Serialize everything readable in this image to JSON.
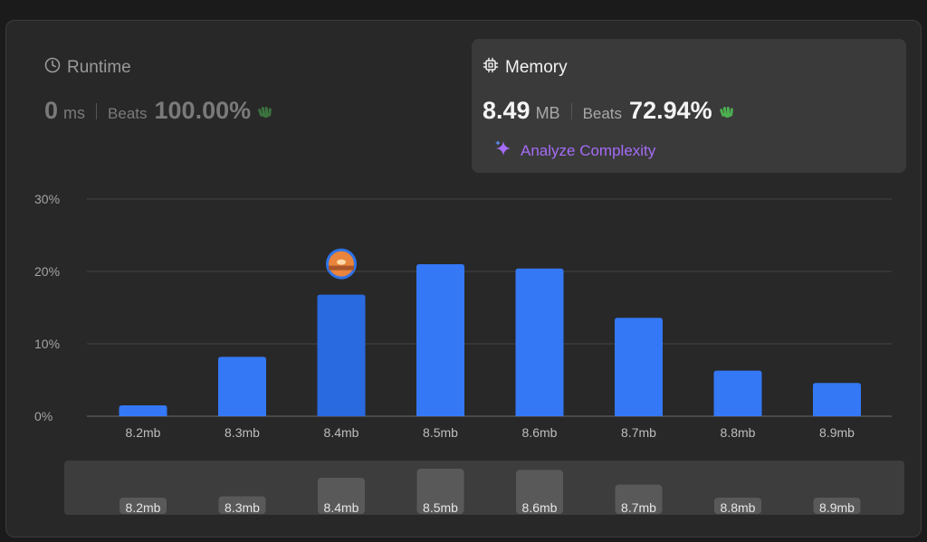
{
  "runtime": {
    "title": "Runtime",
    "value": "0",
    "unit": "ms",
    "beats_label": "Beats",
    "beats_value": "100.00%",
    "icon": "clock-icon"
  },
  "memory": {
    "title": "Memory",
    "value": "8.49",
    "unit": "MB",
    "beats_label": "Beats",
    "beats_value": "72.94%",
    "icon": "chip-icon",
    "analyze_label": "Analyze Complexity"
  },
  "colors": {
    "bar": "#3478f6",
    "bar_highlight": "#2a6ae0",
    "mini_bar": "#595959",
    "accent_purple": "#a56cf7",
    "hands_green": "#4caf50"
  },
  "chart_data": {
    "type": "bar",
    "categories": [
      "8.2mb",
      "8.3mb",
      "8.4mb",
      "8.5mb",
      "8.6mb",
      "8.7mb",
      "8.8mb",
      "8.9mb"
    ],
    "values": [
      1.5,
      8.2,
      16.8,
      21.0,
      20.4,
      13.6,
      6.3,
      4.6
    ],
    "y_ticks": [
      "0%",
      "10%",
      "20%",
      "30%"
    ],
    "ylim": [
      0,
      30
    ],
    "highlight_category": "8.4mb",
    "grid": true,
    "title": "",
    "xlabel": "",
    "ylabel": ""
  },
  "mini_chart": {
    "labels": [
      "8.2mb",
      "8.3mb",
      "8.4mb",
      "8.5mb",
      "8.6mb",
      "8.7mb",
      "8.8mb",
      "8.9mb"
    ]
  }
}
